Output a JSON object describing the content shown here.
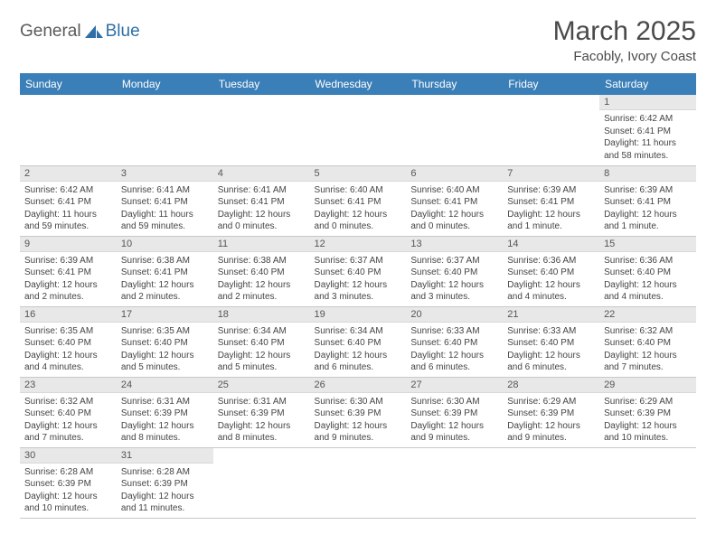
{
  "logo": {
    "word1": "General",
    "word2": "Blue"
  },
  "title": "March 2025",
  "subtitle": "Facobly, Ivory Coast",
  "colors": {
    "header_bg": "#3b7fb8",
    "header_fg": "#ffffff",
    "daynum_bg": "#e8e8e8",
    "border": "#c8c8c8",
    "logo_gray": "#5a5a5a",
    "logo_blue": "#2f6fa8"
  },
  "day_headers": [
    "Sunday",
    "Monday",
    "Tuesday",
    "Wednesday",
    "Thursday",
    "Friday",
    "Saturday"
  ],
  "weeks": [
    [
      null,
      null,
      null,
      null,
      null,
      null,
      {
        "n": "1",
        "sr": "Sunrise: 6:42 AM",
        "ss": "Sunset: 6:41 PM",
        "dl": "Daylight: 11 hours and 58 minutes."
      }
    ],
    [
      {
        "n": "2",
        "sr": "Sunrise: 6:42 AM",
        "ss": "Sunset: 6:41 PM",
        "dl": "Daylight: 11 hours and 59 minutes."
      },
      {
        "n": "3",
        "sr": "Sunrise: 6:41 AM",
        "ss": "Sunset: 6:41 PM",
        "dl": "Daylight: 11 hours and 59 minutes."
      },
      {
        "n": "4",
        "sr": "Sunrise: 6:41 AM",
        "ss": "Sunset: 6:41 PM",
        "dl": "Daylight: 12 hours and 0 minutes."
      },
      {
        "n": "5",
        "sr": "Sunrise: 6:40 AM",
        "ss": "Sunset: 6:41 PM",
        "dl": "Daylight: 12 hours and 0 minutes."
      },
      {
        "n": "6",
        "sr": "Sunrise: 6:40 AM",
        "ss": "Sunset: 6:41 PM",
        "dl": "Daylight: 12 hours and 0 minutes."
      },
      {
        "n": "7",
        "sr": "Sunrise: 6:39 AM",
        "ss": "Sunset: 6:41 PM",
        "dl": "Daylight: 12 hours and 1 minute."
      },
      {
        "n": "8",
        "sr": "Sunrise: 6:39 AM",
        "ss": "Sunset: 6:41 PM",
        "dl": "Daylight: 12 hours and 1 minute."
      }
    ],
    [
      {
        "n": "9",
        "sr": "Sunrise: 6:39 AM",
        "ss": "Sunset: 6:41 PM",
        "dl": "Daylight: 12 hours and 2 minutes."
      },
      {
        "n": "10",
        "sr": "Sunrise: 6:38 AM",
        "ss": "Sunset: 6:41 PM",
        "dl": "Daylight: 12 hours and 2 minutes."
      },
      {
        "n": "11",
        "sr": "Sunrise: 6:38 AM",
        "ss": "Sunset: 6:40 PM",
        "dl": "Daylight: 12 hours and 2 minutes."
      },
      {
        "n": "12",
        "sr": "Sunrise: 6:37 AM",
        "ss": "Sunset: 6:40 PM",
        "dl": "Daylight: 12 hours and 3 minutes."
      },
      {
        "n": "13",
        "sr": "Sunrise: 6:37 AM",
        "ss": "Sunset: 6:40 PM",
        "dl": "Daylight: 12 hours and 3 minutes."
      },
      {
        "n": "14",
        "sr": "Sunrise: 6:36 AM",
        "ss": "Sunset: 6:40 PM",
        "dl": "Daylight: 12 hours and 4 minutes."
      },
      {
        "n": "15",
        "sr": "Sunrise: 6:36 AM",
        "ss": "Sunset: 6:40 PM",
        "dl": "Daylight: 12 hours and 4 minutes."
      }
    ],
    [
      {
        "n": "16",
        "sr": "Sunrise: 6:35 AM",
        "ss": "Sunset: 6:40 PM",
        "dl": "Daylight: 12 hours and 4 minutes."
      },
      {
        "n": "17",
        "sr": "Sunrise: 6:35 AM",
        "ss": "Sunset: 6:40 PM",
        "dl": "Daylight: 12 hours and 5 minutes."
      },
      {
        "n": "18",
        "sr": "Sunrise: 6:34 AM",
        "ss": "Sunset: 6:40 PM",
        "dl": "Daylight: 12 hours and 5 minutes."
      },
      {
        "n": "19",
        "sr": "Sunrise: 6:34 AM",
        "ss": "Sunset: 6:40 PM",
        "dl": "Daylight: 12 hours and 6 minutes."
      },
      {
        "n": "20",
        "sr": "Sunrise: 6:33 AM",
        "ss": "Sunset: 6:40 PM",
        "dl": "Daylight: 12 hours and 6 minutes."
      },
      {
        "n": "21",
        "sr": "Sunrise: 6:33 AM",
        "ss": "Sunset: 6:40 PM",
        "dl": "Daylight: 12 hours and 6 minutes."
      },
      {
        "n": "22",
        "sr": "Sunrise: 6:32 AM",
        "ss": "Sunset: 6:40 PM",
        "dl": "Daylight: 12 hours and 7 minutes."
      }
    ],
    [
      {
        "n": "23",
        "sr": "Sunrise: 6:32 AM",
        "ss": "Sunset: 6:40 PM",
        "dl": "Daylight: 12 hours and 7 minutes."
      },
      {
        "n": "24",
        "sr": "Sunrise: 6:31 AM",
        "ss": "Sunset: 6:39 PM",
        "dl": "Daylight: 12 hours and 8 minutes."
      },
      {
        "n": "25",
        "sr": "Sunrise: 6:31 AM",
        "ss": "Sunset: 6:39 PM",
        "dl": "Daylight: 12 hours and 8 minutes."
      },
      {
        "n": "26",
        "sr": "Sunrise: 6:30 AM",
        "ss": "Sunset: 6:39 PM",
        "dl": "Daylight: 12 hours and 9 minutes."
      },
      {
        "n": "27",
        "sr": "Sunrise: 6:30 AM",
        "ss": "Sunset: 6:39 PM",
        "dl": "Daylight: 12 hours and 9 minutes."
      },
      {
        "n": "28",
        "sr": "Sunrise: 6:29 AM",
        "ss": "Sunset: 6:39 PM",
        "dl": "Daylight: 12 hours and 9 minutes."
      },
      {
        "n": "29",
        "sr": "Sunrise: 6:29 AM",
        "ss": "Sunset: 6:39 PM",
        "dl": "Daylight: 12 hours and 10 minutes."
      }
    ],
    [
      {
        "n": "30",
        "sr": "Sunrise: 6:28 AM",
        "ss": "Sunset: 6:39 PM",
        "dl": "Daylight: 12 hours and 10 minutes."
      },
      {
        "n": "31",
        "sr": "Sunrise: 6:28 AM",
        "ss": "Sunset: 6:39 PM",
        "dl": "Daylight: 12 hours and 11 minutes."
      },
      null,
      null,
      null,
      null,
      null
    ]
  ]
}
